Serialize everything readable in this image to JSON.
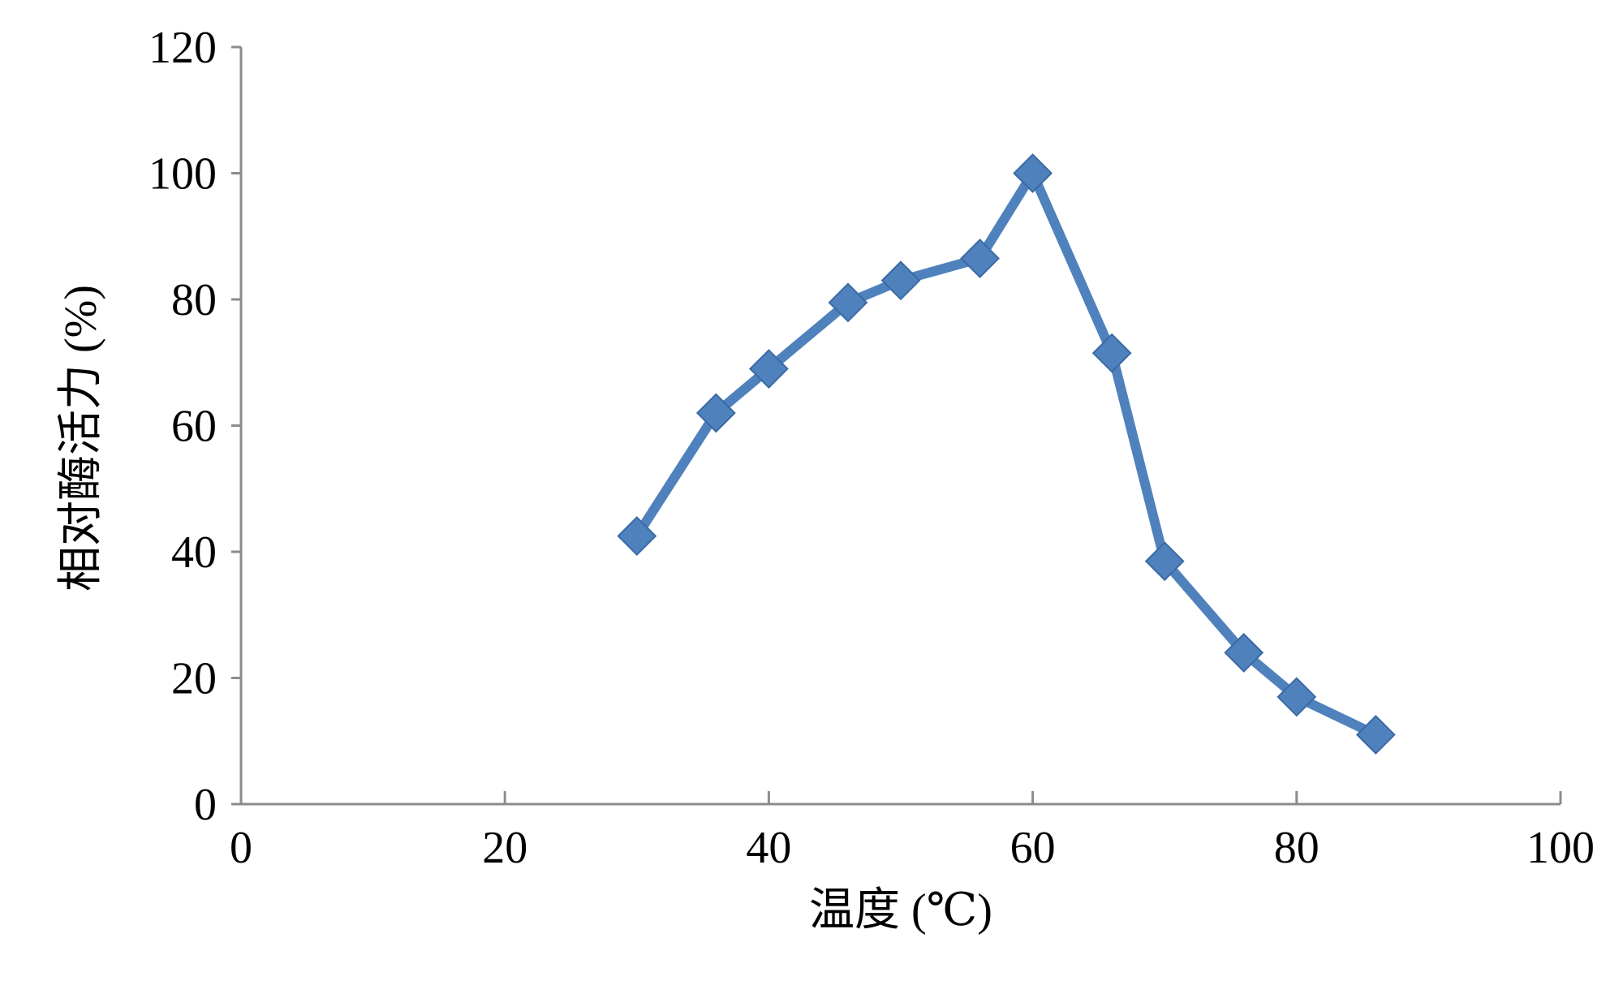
{
  "chart_data": {
    "type": "line",
    "x_label": "温度 (℃)",
    "y_label": "相对酶活力 (%)",
    "x": [
      30,
      36,
      40,
      46,
      50,
      56,
      60,
      66,
      70,
      76,
      80,
      86
    ],
    "values": [
      42.5,
      62,
      69,
      79.5,
      83,
      86.5,
      100,
      71.5,
      38.5,
      24,
      17,
      11
    ],
    "color": "#4f81bd",
    "marker": "diamond",
    "xlim": [
      0,
      100
    ],
    "xticks": [
      0,
      20,
      40,
      60,
      80,
      100
    ],
    "ylim": [
      0,
      120
    ],
    "yticks": [
      0,
      20,
      40,
      60,
      80,
      100,
      120
    ],
    "grid": false
  }
}
